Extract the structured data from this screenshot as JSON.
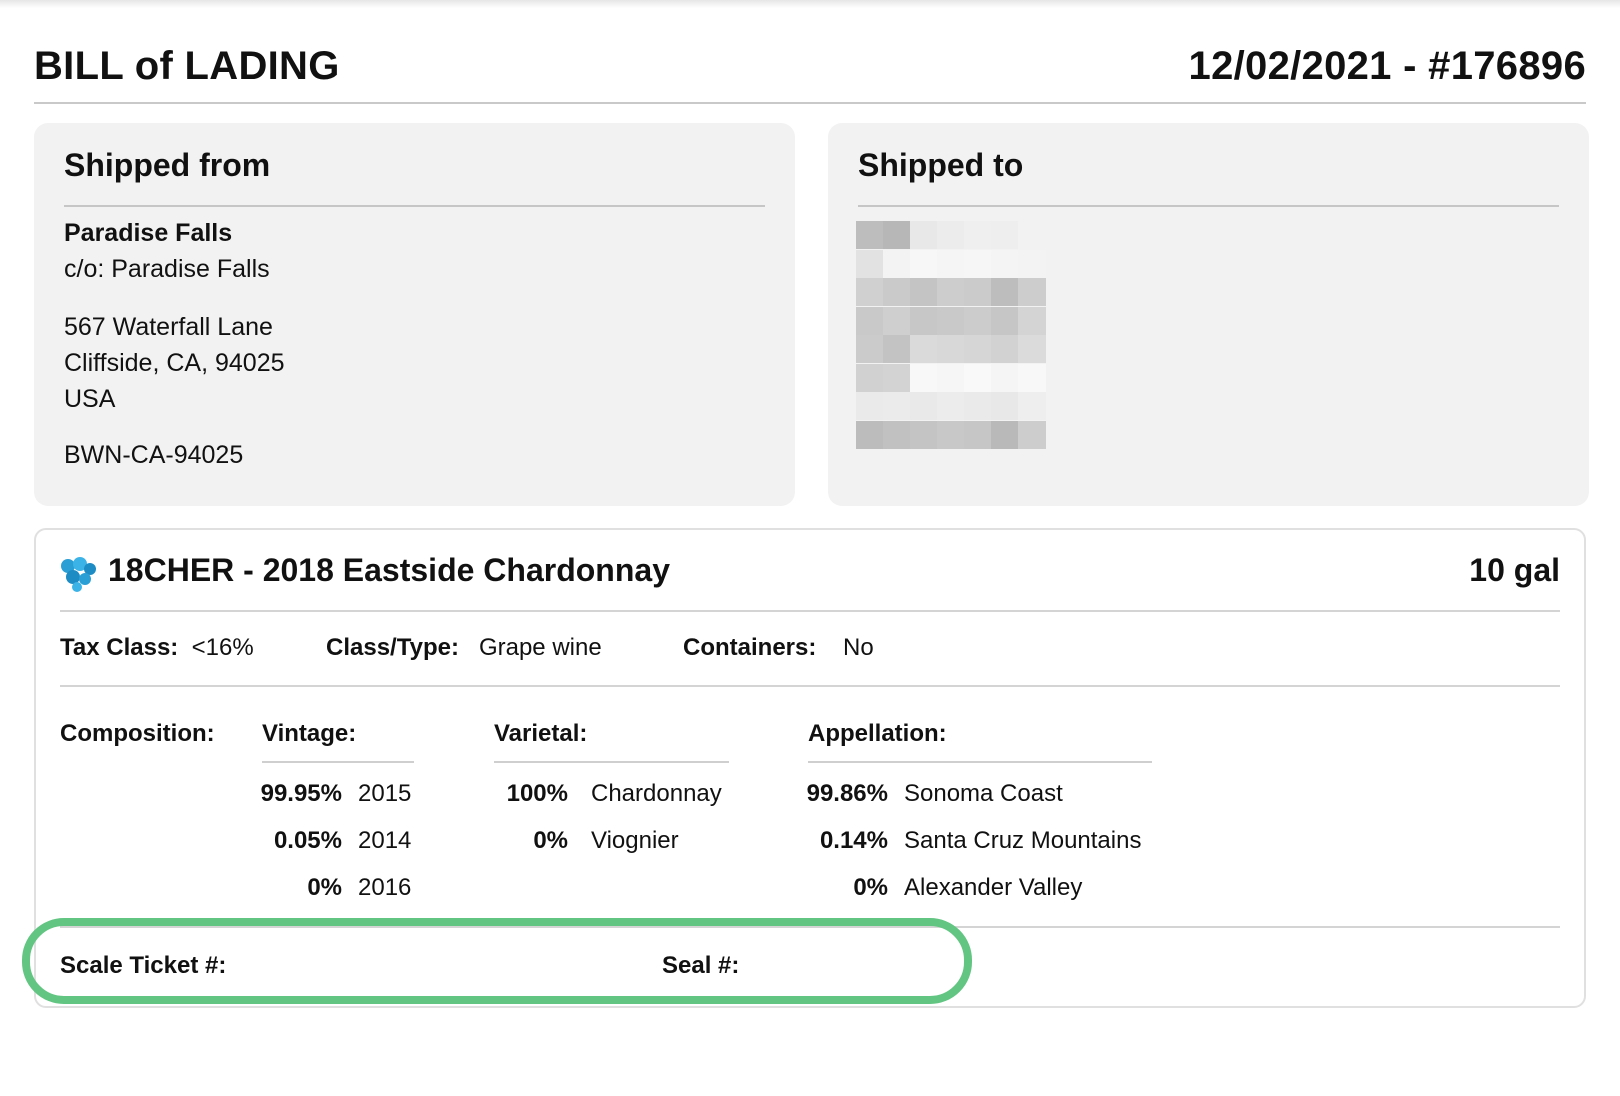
{
  "header": {
    "title": "BILL of LADING",
    "doc_id": "12/02/2021 - #176896"
  },
  "shipped_from": {
    "title": "Shipped from",
    "name": "Paradise Falls",
    "care_of": "c/o:  Paradise Falls",
    "address_line1": "567 Waterfall Lane",
    "address_line2": "Cliffside, CA, 94025",
    "country": "USA",
    "bond_number": "BWN-CA-94025"
  },
  "shipped_to": {
    "title": "Shipped to"
  },
  "product": {
    "name": "18CHER - 2018 Eastside Chardonnay",
    "quantity": "10 gal",
    "icon": "grape-cluster-icon",
    "tax_class_label": "Tax Class:",
    "tax_class_value": "<16%",
    "class_type_label": "Class/Type:",
    "class_type_value": "Grape wine",
    "containers_label": "Containers:",
    "containers_value": "No",
    "composition_label": "Composition:",
    "vintage": {
      "header": "Vintage:",
      "rows": [
        {
          "pct": "99.95%",
          "value": "2015"
        },
        {
          "pct": "0.05%",
          "value": "2014"
        },
        {
          "pct": "0%",
          "value": "2016"
        }
      ]
    },
    "varietal": {
      "header": "Varietal:",
      "rows": [
        {
          "pct": "100%",
          "value": "Chardonnay"
        },
        {
          "pct": "0%",
          "value": "Viognier"
        }
      ]
    },
    "appellation": {
      "header": "Appellation:",
      "rows": [
        {
          "pct": "99.86%",
          "value": "Sonoma Coast"
        },
        {
          "pct": "0.14%",
          "value": "Santa Cruz Mountains"
        },
        {
          "pct": "0%",
          "value": "Alexander Valley"
        }
      ]
    },
    "scale_ticket_label": "Scale Ticket #:",
    "seal_label": "Seal #:"
  },
  "colors": {
    "highlight": "#62c582",
    "card_bg": "#f2f2f2",
    "grape_icon": "#2a9fd6"
  }
}
